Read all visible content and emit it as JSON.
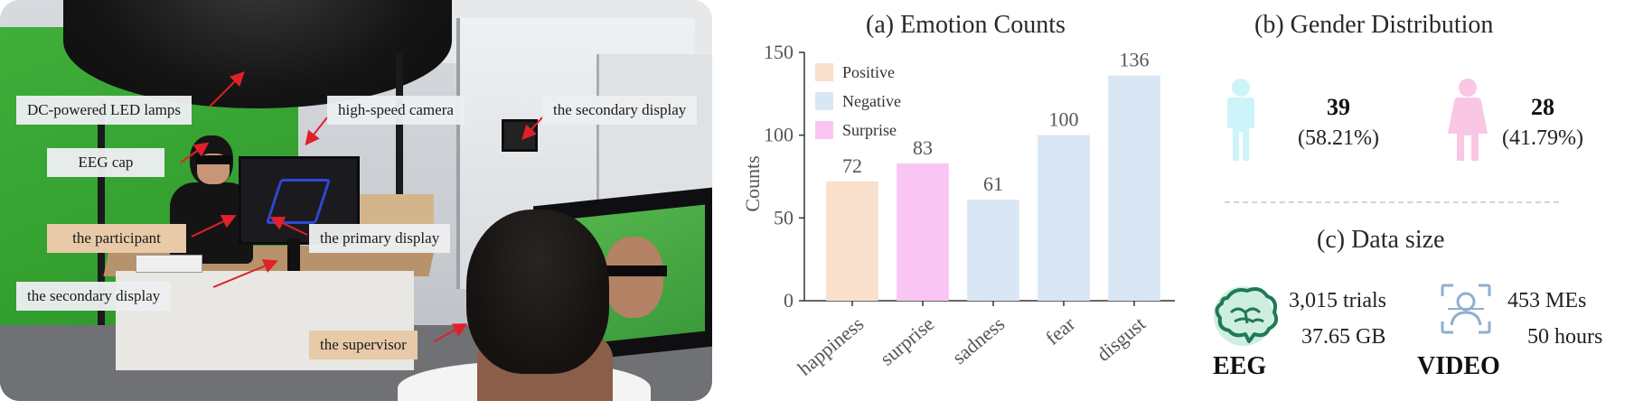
{
  "photo_labels": {
    "led_lamps": "DC-powered LED lamps",
    "camera": "high-speed camera",
    "secondary_display_top": "the secondary display",
    "eeg_cap": "EEG cap",
    "participant": "the participant",
    "primary_display": "the primary display",
    "secondary_display_bottom": "the secondary display",
    "supervisor": "the supervisor"
  },
  "chart_data": [
    {
      "type": "bar",
      "title": "(a) Emotion Counts",
      "xlabel": "",
      "ylabel": "Counts",
      "ylim": [
        0,
        150
      ],
      "yticks": [
        0,
        50,
        100,
        150
      ],
      "categories": [
        "happiness",
        "surprise",
        "sadness",
        "fear",
        "disgust"
      ],
      "values": [
        72,
        83,
        61,
        100,
        136
      ],
      "value_labels": [
        "72",
        "83",
        "61",
        "100",
        "136"
      ],
      "bar_groups": [
        "Positive",
        "Surprise",
        "Negative",
        "Negative",
        "Negative"
      ],
      "legend": [
        {
          "name": "Positive",
          "color": "#f8e0cc"
        },
        {
          "name": "Negative",
          "color": "#d9e6f4"
        },
        {
          "name": "Surprise",
          "color": "#f9c6f3"
        }
      ],
      "legend_position": "top-left",
      "grid": false
    }
  ],
  "gender": {
    "title": "(b) Gender Distribution",
    "male": {
      "count": "39",
      "percent": "(58.21%)",
      "color": "#cdf4f8",
      "icon": "male-person-icon"
    },
    "female": {
      "count": "28",
      "percent": "(41.79%)",
      "color": "#f9c6e4",
      "icon": "female-person-icon"
    }
  },
  "data_size": {
    "title": "(c) Data size",
    "eeg": {
      "line1": "3,015 trials",
      "line2": "37.65 GB",
      "label": "EEG",
      "color": "#1f7a55",
      "icon": "brain-icon"
    },
    "video": {
      "line1": "453 MEs",
      "line2": "50 hours",
      "label": "VIDEO",
      "color": "#8faecf",
      "icon": "face-scan-icon"
    }
  }
}
